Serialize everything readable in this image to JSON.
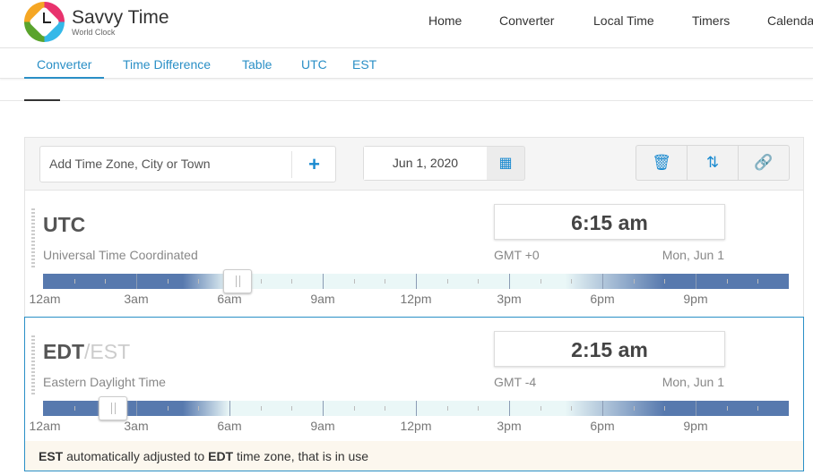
{
  "brand": {
    "name": "Savvy Time",
    "tagline": "World Clock"
  },
  "nav": [
    "Home",
    "Converter",
    "Local Time",
    "Timers",
    "Calendar"
  ],
  "subnav": {
    "tabs": [
      "Converter",
      "Time Difference",
      "Table",
      "UTC",
      "EST"
    ],
    "active": 0
  },
  "toolbar": {
    "search_placeholder": "Add Time Zone, City or Town",
    "add_icon": "plus-icon",
    "date": "Jun 1, 2020",
    "calendar_icon": "calendar-icon",
    "tools": [
      "trash-icon",
      "sort-icon",
      "link-icon"
    ]
  },
  "hour_labels": [
    "12am",
    "3am",
    "6am",
    "9am",
    "12pm",
    "3pm",
    "6pm",
    "9pm"
  ],
  "zones": [
    {
      "abbr": "UTC",
      "alt": "",
      "name": "Universal Time Coordinated",
      "time": "6:15 am",
      "gmt": "GMT +0",
      "day": "Mon, Jun 1",
      "hour": 6.25,
      "selected": false
    },
    {
      "abbr": "EDT",
      "alt": "/EST",
      "name": "Eastern Daylight Time",
      "time": "2:15 am",
      "gmt": "GMT -4",
      "day": "Mon, Jun 1",
      "hour": 2.25,
      "selected": true,
      "note": {
        "a": "EST",
        "b": " automatically adjusted to ",
        "c": "EDT",
        "d": " time zone, that is in use"
      }
    }
  ],
  "colors": {
    "accent": "#2a8fc6",
    "night": "#5779ae",
    "day": "#eaf7f7"
  }
}
